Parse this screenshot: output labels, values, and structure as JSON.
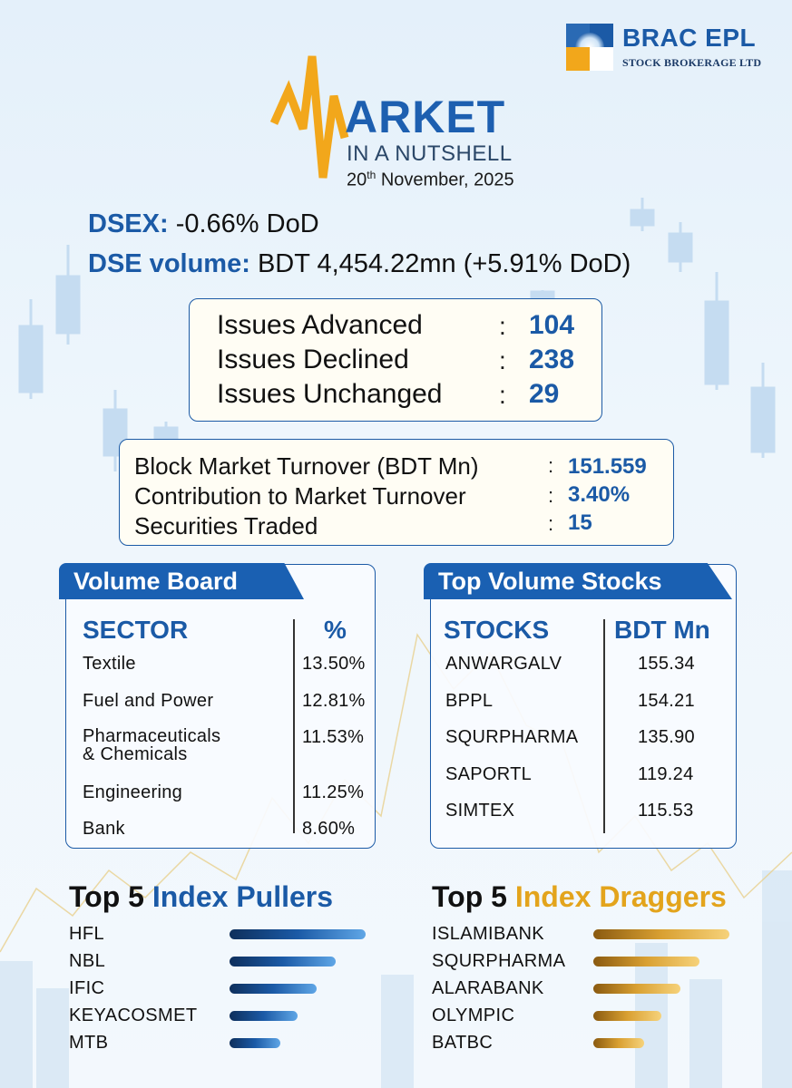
{
  "brand": {
    "name": "BRAC EPL",
    "subtitle": "STOCK BROKERAGE LTD"
  },
  "title": {
    "main": "ARKET",
    "sub": "IN A NUTSHELL",
    "date_day": "20",
    "date_suffix": "th",
    "date_rest": " November, 2025"
  },
  "dsex": {
    "label": "DSEX:",
    "value": "-0.66% DoD"
  },
  "dse_volume": {
    "label": "DSE volume:",
    "value": "BDT 4,454.22mn (+5.91% DoD)"
  },
  "issues": [
    {
      "label": "Issues Advanced",
      "value": "104"
    },
    {
      "label": "Issues Declined",
      "value": "238"
    },
    {
      "label": "Issues Unchanged",
      "value": "29"
    }
  ],
  "block_market": [
    {
      "label": "Block Market Turnover (BDT Mn)",
      "value": "151.559"
    },
    {
      "label": "Contribution to Market Turnover",
      "value": "3.40%"
    },
    {
      "label": "Securities Traded",
      "value": "15"
    }
  ],
  "volume_board": {
    "title": "Volume Board",
    "col1": "SECTOR",
    "col2": "%",
    "rows": [
      {
        "sector": "Textile",
        "pct": "13.50%"
      },
      {
        "sector": "Fuel and Power",
        "pct": "12.81%"
      },
      {
        "sector": "Pharmaceuticals",
        "sector_line2": "& Chemicals",
        "pct": "11.53%"
      },
      {
        "sector": "Engineering",
        "pct": "11.25%"
      },
      {
        "sector": "Bank",
        "pct": "8.60%"
      }
    ]
  },
  "top_volume": {
    "title": "Top Volume Stocks",
    "col1": "STOCKS",
    "col2": "BDT Mn",
    "rows": [
      {
        "stock": "ANWARGALV",
        "value": "155.34"
      },
      {
        "stock": "BPPL",
        "value": "154.21"
      },
      {
        "stock": "SQURPHARMA",
        "value": "135.90"
      },
      {
        "stock": "SAPORTL",
        "value": "119.24"
      },
      {
        "stock": "SIMTEX",
        "value": "115.53"
      }
    ]
  },
  "pullers": {
    "title_a": "Top 5 ",
    "title_b": "Index Pullers",
    "accent": "#1b5aa6",
    "items": [
      {
        "name": "HFL",
        "level": 1.0
      },
      {
        "name": "NBL",
        "level": 0.78
      },
      {
        "name": "IFIC",
        "level": 0.64
      },
      {
        "name": "KEYACOSMET",
        "level": 0.5
      },
      {
        "name": "MTB",
        "level": 0.37
      }
    ]
  },
  "draggers": {
    "title_a": "Top 5 ",
    "title_b": "Index Draggers",
    "accent": "#e3a41c",
    "items": [
      {
        "name": "ISLAMIBANK",
        "level": 1.0
      },
      {
        "name": "SQURPHARMA",
        "level": 0.78
      },
      {
        "name": "ALARABANK",
        "level": 0.64
      },
      {
        "name": "OLYMPIC",
        "level": 0.5
      },
      {
        "name": "BATBC",
        "level": 0.37
      }
    ]
  }
}
